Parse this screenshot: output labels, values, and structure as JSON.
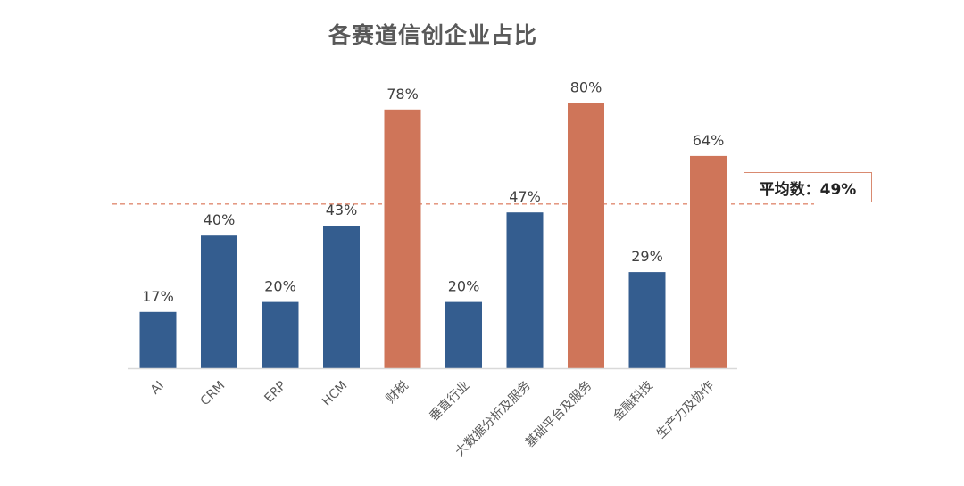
{
  "chart_data": {
    "type": "bar",
    "title": "各赛道信创企业占比",
    "categories": [
      "AI",
      "CRM",
      "ERP",
      "HCM",
      "财税",
      "垂直行业",
      "大数据分析及服务",
      "基础平台及服务",
      "金融科技",
      "生产力及协作"
    ],
    "values": [
      17,
      40,
      20,
      43,
      78,
      20,
      47,
      80,
      29,
      64
    ],
    "value_labels": [
      "17%",
      "40%",
      "20%",
      "43%",
      "78%",
      "20%",
      "47%",
      "80%",
      "29%",
      "64%"
    ],
    "highlighted": [
      false,
      false,
      false,
      false,
      true,
      false,
      false,
      true,
      false,
      true
    ],
    "ylim": [
      0,
      100
    ],
    "xlabel": "",
    "ylabel": "",
    "grid": false,
    "average": {
      "value": 49,
      "label": "平均数：49%"
    },
    "colors": {
      "normal_bar": "#345d8f",
      "highlight_bar": "#cf7559",
      "average_line": "#e08b72",
      "axis": "#d9d9d9"
    }
  }
}
